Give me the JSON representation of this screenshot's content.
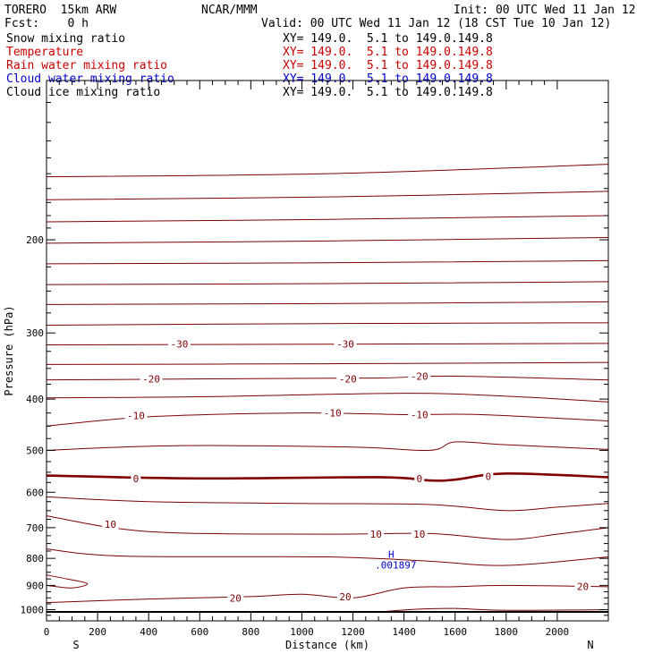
{
  "header": {
    "title": "TORERO  15km ARW",
    "center": "NCAR/MMM",
    "init": "Init: 00 UTC Wed 11 Jan 12",
    "fcst": "Fcst:    0 h",
    "valid": "Valid: 00 UTC Wed 11 Jan 12 (18 CST Tue 10 Jan 12)"
  },
  "fields": [
    {
      "name": "Snow mixing ratio",
      "xy": "",
      "color": "#000000"
    },
    {
      "name": "Temperature",
      "xy": "XY= 149.0.  5.1 to 149.0.149.8",
      "color": "#cc0000"
    },
    {
      "name": "Rain water mixing ratio",
      "xy": "XY= 149.0.  5.1 to 149.0.149.8",
      "color": "#cc0000"
    },
    {
      "name": "Cloud water mixing ratio",
      "xy": "XY= 149.0.  5.1 to 149.0.149.8",
      "color": "#0000cc"
    },
    {
      "name": "Cloud ice mixing ratio",
      "xy": "XY= 149.0.  5.1 to 149.0.149.8",
      "color": "#000000"
    }
  ],
  "first_xy": "XY= 149.0.  5.1 to 149.0.149.8",
  "colors": {
    "contour": "#800000",
    "axis": "#000000",
    "blue_label": "#0000cc"
  },
  "chart_data": {
    "type": "contour",
    "xlabel": "Distance (km)",
    "ylabel": "Pressure (hPa)",
    "xlim": [
      0,
      2200
    ],
    "ylim": [
      1050,
      100
    ],
    "y_scale": "log",
    "x_ticks": [
      0,
      200,
      400,
      600,
      800,
      1000,
      1200,
      1400,
      1600,
      1800,
      2000
    ],
    "x_tick_labels": [
      "0",
      "200",
      "400",
      "600",
      "800",
      "1000",
      "1200",
      "1400",
      "1600",
      "1800",
      "2000"
    ],
    "y_ticks": [
      200,
      300,
      400,
      500,
      600,
      700,
      800,
      900,
      1000
    ],
    "y_tick_labels": [
      "200",
      "300",
      "400",
      "500",
      "600",
      "700",
      "800",
      "900",
      "1000"
    ],
    "left_end": "S",
    "right_end": "N",
    "contours": [
      {
        "x": [
          0,
          1100,
          2200
        ],
        "p": [
          152,
          150,
          144
        ]
      },
      {
        "x": [
          0,
          1100,
          2200
        ],
        "p": [
          168,
          166,
          162
        ]
      },
      {
        "x": [
          0,
          1100,
          2200
        ],
        "p": [
          185,
          183,
          180
        ]
      },
      {
        "x": [
          0,
          1100,
          2200
        ],
        "p": [
          203,
          201,
          198
        ]
      },
      {
        "x": [
          0,
          1100,
          2200
        ],
        "p": [
          222,
          221,
          219
        ]
      },
      {
        "x": [
          0,
          1100,
          2200
        ],
        "p": [
          243,
          242,
          240
        ]
      },
      {
        "x": [
          0,
          1100,
          2200
        ],
        "p": [
          265,
          264,
          262
        ]
      },
      {
        "x": [
          0,
          1100,
          2200
        ],
        "p": [
          290,
          288,
          287
        ]
      },
      {
        "x": [
          0,
          1100,
          2200
        ],
        "p": [
          316,
          315,
          314
        ]
      },
      {
        "x": [
          0,
          1100,
          2200
        ],
        "p": [
          344,
          343,
          341
        ]
      },
      {
        "x": [
          0,
          800,
          1300,
          1600,
          2200
        ],
        "p": [
          368,
          366,
          365,
          362,
          368
        ]
      },
      {
        "x": [
          0,
          600,
          1400,
          1800,
          2200
        ],
        "p": [
          398,
          396,
          390,
          395,
          405
        ]
      },
      {
        "x": [
          0,
          400,
          1000,
          1400,
          1700,
          2200
        ],
        "p": [
          450,
          432,
          425,
          428,
          428,
          440
        ]
      },
      {
        "x": [
          0,
          500,
          1200,
          1500,
          1600,
          1800,
          2200
        ],
        "p": [
          500,
          490,
          493,
          500,
          482,
          488,
          498
        ]
      },
      {
        "x": [
          0,
          600,
          1300,
          1500,
          1600,
          1800,
          2200
        ],
        "p": [
          558,
          565,
          562,
          570,
          568,
          553,
          562
        ]
      },
      {
        "x": [
          0,
          400,
          1000,
          1500,
          1800,
          2000,
          2200
        ],
        "p": [
          612,
          625,
          630,
          633,
          650,
          640,
          630
        ]
      },
      {
        "x": [
          0,
          400,
          1100,
          1500,
          1800,
          2000,
          2200
        ],
        "p": [
          665,
          712,
          720,
          718,
          737,
          720,
          700
        ]
      },
      {
        "x": [
          0,
          300,
          1100,
          1500,
          1800,
          2200
        ],
        "p": [
          768,
          792,
          795,
          810,
          825,
          795
        ]
      },
      {
        "x": [
          0,
          80,
          160,
          100,
          0
        ],
        "p": [
          860,
          875,
          893,
          910,
          900
        ]
      },
      {
        "x": [
          0,
          400,
          800,
          1000,
          1200,
          1400,
          1600,
          1800,
          2200
        ],
        "p": [
          970,
          955,
          945,
          935,
          950,
          910,
          905,
          900,
          905
        ]
      },
      {
        "x": [
          1300,
          1450,
          1600,
          1800,
          2200
        ],
        "p": [
          1010,
          998,
          995,
          1003,
          1000
        ]
      }
    ],
    "bold_contours": [
      {
        "x": [
          0,
          600,
          1300,
          1500,
          1600,
          1800,
          2200
        ],
        "p": [
          558,
          565,
          562,
          570,
          568,
          553,
          562
        ]
      },
      {
        "x": [
          0,
          2200
        ],
        "p": [
          1010,
          1010
        ]
      }
    ],
    "contour_labels": [
      {
        "x": 520,
        "p": 315,
        "text": "-30"
      },
      {
        "x": 1170,
        "p": 315,
        "text": "-30"
      },
      {
        "x": 410,
        "p": 366,
        "text": "-20"
      },
      {
        "x": 1180,
        "p": 366,
        "text": "-20"
      },
      {
        "x": 1460,
        "p": 362,
        "text": "-20"
      },
      {
        "x": 350,
        "p": 430,
        "text": "-10"
      },
      {
        "x": 1120,
        "p": 425,
        "text": "-10"
      },
      {
        "x": 1460,
        "p": 428,
        "text": "-10"
      },
      {
        "x": 350,
        "p": 565,
        "text": "0"
      },
      {
        "x": 1460,
        "p": 565,
        "text": "0"
      },
      {
        "x": 1730,
        "p": 560,
        "text": "0"
      },
      {
        "x": 250,
        "p": 690,
        "text": "10"
      },
      {
        "x": 1290,
        "p": 720,
        "text": "10"
      },
      {
        "x": 1460,
        "p": 720,
        "text": "10"
      },
      {
        "x": 740,
        "p": 950,
        "text": "20"
      },
      {
        "x": 1170,
        "p": 945,
        "text": "20"
      },
      {
        "x": 2100,
        "p": 903,
        "text": "20"
      }
    ],
    "extremum": {
      "x": 1350,
      "p": 805,
      "symbol": "H",
      "value": ".001897"
    }
  }
}
